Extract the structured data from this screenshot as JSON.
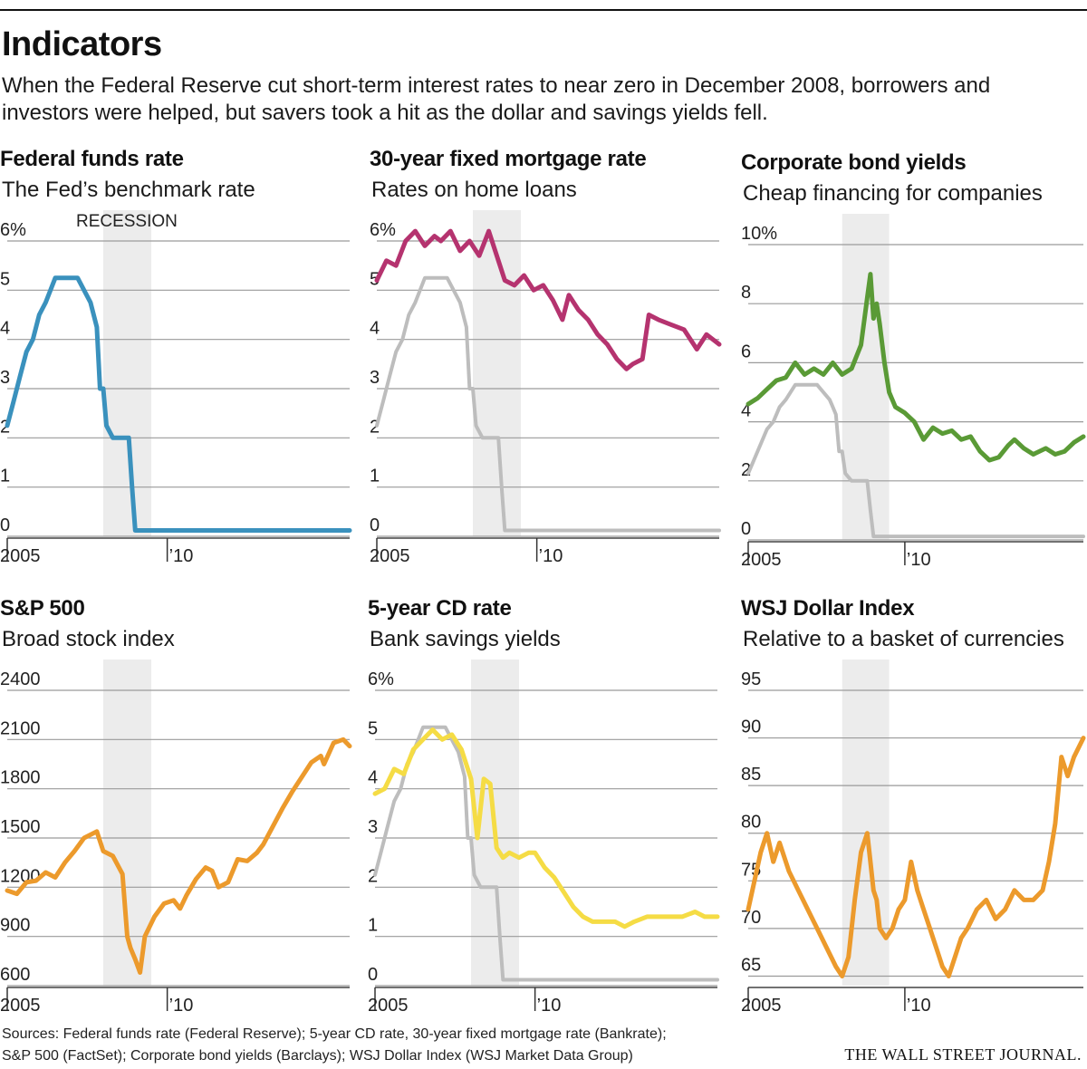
{
  "headline": "Indicators",
  "dek": "When the Federal Reserve cut short-term interest rates to near zero in December 2008, borrowers and investors were helped, but savers took a hit as the dollar and savings yields fell.",
  "sources": [
    "Sources: Federal funds rate (Federal Reserve); 5-year CD rate, 30-year fixed mortgage rate (Bankrate);",
    "S&P 500 (FactSet); Corporate bond yields (Barclays); WSJ Dollar Index (WSJ Market Data Group)"
  ],
  "masthead": "THE WALL STREET JOURNAL.",
  "colors": {
    "fed": "#3a91bd",
    "mortgage": "#b5336f",
    "corporate": "#5a9a36",
    "sp500": "#ec9a2c",
    "cd": "#f5dc45",
    "dollar": "#ec9a2c",
    "reference": "#bdbdbd",
    "recession": "#ececec"
  },
  "chart_data": [
    {
      "type": "line",
      "title": "Federal funds rate",
      "subtitle": "The Fed’s benchmark rate",
      "ylim": [
        0,
        6
      ],
      "yticks": [
        "6%",
        "5",
        "4",
        "3",
        "2",
        "1",
        "0"
      ],
      "ytick_values": [
        6,
        5,
        4,
        3,
        2,
        1,
        0
      ],
      "xlim": [
        2005,
        2015.7
      ],
      "xticks": [
        "2005",
        "’10"
      ],
      "xtick_values": [
        2005,
        2010
      ],
      "recession": [
        2008.0,
        2009.5
      ],
      "recession_label": "RECESSION",
      "series": [
        {
          "color": "#3a91bd",
          "x": [
            2005.0,
            2005.2,
            2005.4,
            2005.6,
            2005.8,
            2006.0,
            2006.2,
            2006.5,
            2007.2,
            2007.6,
            2007.7,
            2007.8,
            2007.9,
            2008.0,
            2008.1,
            2008.3,
            2008.8,
            2008.9,
            2009.0,
            2015.7
          ],
          "y": [
            2.25,
            2.75,
            3.25,
            3.75,
            4.0,
            4.5,
            4.75,
            5.25,
            5.25,
            4.75,
            4.5,
            4.25,
            3.0,
            3.0,
            2.25,
            2.0,
            2.0,
            1.0,
            0.12,
            0.12
          ]
        }
      ]
    },
    {
      "type": "line",
      "title": "30-year fixed mortgage rate",
      "subtitle": "Rates on home loans",
      "ylim": [
        0,
        6
      ],
      "yticks": [
        "6%",
        "5",
        "4",
        "3",
        "2",
        "1",
        "0"
      ],
      "ytick_values": [
        6,
        5,
        4,
        3,
        2,
        1,
        0
      ],
      "xlim": [
        2005,
        2015.7
      ],
      "xticks": [
        "2005",
        "’10"
      ],
      "xtick_values": [
        2005,
        2010
      ],
      "recession": [
        2008.0,
        2009.5
      ],
      "series": [
        {
          "color": "#bdbdbd",
          "x": [
            2005.0,
            2005.2,
            2005.4,
            2005.6,
            2005.8,
            2006.0,
            2006.2,
            2006.5,
            2007.2,
            2007.6,
            2007.7,
            2007.8,
            2007.9,
            2008.0,
            2008.1,
            2008.3,
            2008.8,
            2008.9,
            2009.0,
            2015.7
          ],
          "y": [
            2.25,
            2.75,
            3.25,
            3.75,
            4.0,
            4.5,
            4.75,
            5.25,
            5.25,
            4.75,
            4.5,
            4.25,
            3.0,
            3.0,
            2.25,
            2.0,
            2.0,
            1.0,
            0.12,
            0.12
          ]
        },
        {
          "color": "#b5336f",
          "x": [
            2005.0,
            2005.3,
            2005.6,
            2005.9,
            2006.2,
            2006.5,
            2006.8,
            2007.0,
            2007.3,
            2007.6,
            2007.9,
            2008.2,
            2008.5,
            2008.8,
            2009.0,
            2009.3,
            2009.6,
            2009.9,
            2010.2,
            2010.5,
            2010.8,
            2011.0,
            2011.3,
            2011.6,
            2011.9,
            2012.2,
            2012.5,
            2012.8,
            2013.0,
            2013.3,
            2013.5,
            2013.8,
            2014.2,
            2014.6,
            2015.0,
            2015.3,
            2015.7
          ],
          "y": [
            5.2,
            5.6,
            5.5,
            6.0,
            6.2,
            5.9,
            6.1,
            6.0,
            6.2,
            5.8,
            6.0,
            5.7,
            6.2,
            5.6,
            5.2,
            5.1,
            5.3,
            5.0,
            5.1,
            4.8,
            4.4,
            4.9,
            4.6,
            4.4,
            4.1,
            3.9,
            3.6,
            3.4,
            3.5,
            3.6,
            4.5,
            4.4,
            4.3,
            4.2,
            3.8,
            4.1,
            3.9
          ]
        }
      ]
    },
    {
      "type": "line",
      "title": "Corporate bond yields",
      "subtitle": "Cheap financing for companies",
      "ylim": [
        0,
        10
      ],
      "yticks": [
        "10%",
        "8",
        "6",
        "4",
        "2",
        "0"
      ],
      "ytick_values": [
        10,
        8,
        6,
        4,
        2,
        0
      ],
      "xlim": [
        2005,
        2015.7
      ],
      "xticks": [
        "2005",
        "’10"
      ],
      "xtick_values": [
        2005,
        2010
      ],
      "recession": [
        2008.0,
        2009.5
      ],
      "series": [
        {
          "color": "#bdbdbd",
          "x": [
            2005.0,
            2005.2,
            2005.4,
            2005.6,
            2005.8,
            2006.0,
            2006.2,
            2006.5,
            2007.2,
            2007.6,
            2007.7,
            2007.8,
            2007.9,
            2008.0,
            2008.1,
            2008.3,
            2008.8,
            2008.9,
            2009.0,
            2015.7
          ],
          "y": [
            2.25,
            2.75,
            3.25,
            3.75,
            4.0,
            4.5,
            4.75,
            5.25,
            5.25,
            4.75,
            4.5,
            4.25,
            3.0,
            3.0,
            2.25,
            2.0,
            2.0,
            1.0,
            0.12,
            0.12
          ]
        },
        {
          "color": "#5a9a36",
          "x": [
            2005.0,
            2005.3,
            2005.6,
            2005.9,
            2006.2,
            2006.5,
            2006.8,
            2007.1,
            2007.4,
            2007.7,
            2008.0,
            2008.3,
            2008.6,
            2008.8,
            2008.9,
            2009.0,
            2009.1,
            2009.2,
            2009.35,
            2009.5,
            2009.7,
            2010.0,
            2010.3,
            2010.6,
            2010.9,
            2011.2,
            2011.5,
            2011.8,
            2012.1,
            2012.4,
            2012.7,
            2013.0,
            2013.3,
            2013.5,
            2013.8,
            2014.1,
            2014.5,
            2014.8,
            2015.1,
            2015.4,
            2015.7
          ],
          "y": [
            4.6,
            4.8,
            5.1,
            5.4,
            5.5,
            6.0,
            5.6,
            5.8,
            5.6,
            6.0,
            5.6,
            5.8,
            6.6,
            8.2,
            9.0,
            7.5,
            8.0,
            7.3,
            6.0,
            5.0,
            4.5,
            4.3,
            4.0,
            3.4,
            3.8,
            3.6,
            3.7,
            3.4,
            3.5,
            3.0,
            2.7,
            2.8,
            3.2,
            3.4,
            3.1,
            2.9,
            3.1,
            2.9,
            3.0,
            3.3,
            3.5
          ]
        }
      ]
    },
    {
      "type": "line",
      "title": "S&P 500",
      "subtitle": "Broad stock index",
      "ylim": [
        600,
        2400
      ],
      "yticks": [
        "2400",
        "2100",
        "1800",
        "1500",
        "1200",
        "900",
        "600"
      ],
      "ytick_values": [
        2400,
        2100,
        1800,
        1500,
        1200,
        900,
        600
      ],
      "xlim": [
        2005,
        2015.7
      ],
      "xticks": [
        "2005",
        "’10"
      ],
      "xtick_values": [
        2005,
        2010
      ],
      "recession": [
        2008.0,
        2009.5
      ],
      "series": [
        {
          "color": "#ec9a2c",
          "x": [
            2005.0,
            2005.3,
            2005.6,
            2005.9,
            2006.2,
            2006.5,
            2006.8,
            2007.1,
            2007.4,
            2007.8,
            2008.0,
            2008.3,
            2008.6,
            2008.75,
            2008.85,
            2009.0,
            2009.15,
            2009.3,
            2009.6,
            2009.9,
            2010.2,
            2010.4,
            2010.6,
            2010.9,
            2011.2,
            2011.4,
            2011.6,
            2011.9,
            2012.2,
            2012.5,
            2012.8,
            2013.0,
            2013.3,
            2013.6,
            2013.9,
            2014.2,
            2014.5,
            2014.8,
            2014.9,
            2015.2,
            2015.5,
            2015.7
          ],
          "y": [
            1180,
            1160,
            1230,
            1240,
            1290,
            1260,
            1350,
            1420,
            1500,
            1540,
            1420,
            1390,
            1280,
            900,
            830,
            760,
            680,
            900,
            1020,
            1100,
            1120,
            1070,
            1150,
            1250,
            1320,
            1300,
            1200,
            1230,
            1370,
            1360,
            1410,
            1460,
            1570,
            1680,
            1780,
            1870,
            1960,
            2000,
            1950,
            2080,
            2100,
            2060
          ]
        }
      ]
    },
    {
      "type": "line",
      "title": "5-year CD rate",
      "subtitle": "Bank savings yields",
      "ylim": [
        0,
        6
      ],
      "yticks": [
        "6%",
        "5",
        "4",
        "3",
        "2",
        "1",
        "0"
      ],
      "ytick_values": [
        6,
        5,
        4,
        3,
        2,
        1,
        0
      ],
      "xlim": [
        2005,
        2015.7
      ],
      "xticks": [
        "2005",
        "’10"
      ],
      "xtick_values": [
        2005,
        2010
      ],
      "recession": [
        2008.0,
        2009.5
      ],
      "series": [
        {
          "color": "#bdbdbd",
          "x": [
            2005.0,
            2005.2,
            2005.4,
            2005.6,
            2005.8,
            2006.0,
            2006.2,
            2006.5,
            2007.2,
            2007.6,
            2007.7,
            2007.8,
            2007.9,
            2008.0,
            2008.1,
            2008.3,
            2008.8,
            2008.9,
            2009.0,
            2015.7
          ],
          "y": [
            2.25,
            2.75,
            3.25,
            3.75,
            4.0,
            4.5,
            4.75,
            5.25,
            5.25,
            4.75,
            4.5,
            4.25,
            3.0,
            3.0,
            2.25,
            2.0,
            2.0,
            1.0,
            0.12,
            0.12
          ]
        },
        {
          "color": "#f5dc45",
          "x": [
            2005.0,
            2005.3,
            2005.6,
            2005.9,
            2006.2,
            2006.5,
            2006.8,
            2007.1,
            2007.4,
            2007.7,
            2008.0,
            2008.2,
            2008.4,
            2008.6,
            2008.8,
            2009.0,
            2009.2,
            2009.5,
            2009.8,
            2010.0,
            2010.3,
            2010.6,
            2010.9,
            2011.2,
            2011.5,
            2011.8,
            2012.1,
            2012.5,
            2012.8,
            2013.1,
            2013.5,
            2013.8,
            2014.2,
            2014.6,
            2015.0,
            2015.3,
            2015.7
          ],
          "y": [
            3.9,
            4.0,
            4.4,
            4.3,
            4.8,
            5.0,
            5.2,
            5.0,
            5.1,
            4.8,
            4.2,
            3.0,
            4.2,
            4.1,
            2.8,
            2.6,
            2.7,
            2.6,
            2.7,
            2.7,
            2.4,
            2.2,
            1.9,
            1.6,
            1.4,
            1.3,
            1.3,
            1.3,
            1.2,
            1.3,
            1.4,
            1.4,
            1.4,
            1.4,
            1.5,
            1.4,
            1.4
          ]
        }
      ]
    },
    {
      "type": "line",
      "title": "WSJ Dollar Index",
      "subtitle": "Relative to a basket of currencies",
      "ylim": [
        64,
        95
      ],
      "yticks": [
        "95",
        "90",
        "85",
        "80",
        "75",
        "70",
        "65"
      ],
      "ytick_values": [
        95,
        90,
        85,
        80,
        75,
        70,
        65
      ],
      "xlim": [
        2005,
        2015.7
      ],
      "xticks": [
        "2005",
        "’10"
      ],
      "xtick_values": [
        2005,
        2010
      ],
      "recession": [
        2008.0,
        2009.5
      ],
      "series": [
        {
          "color": "#ec9a2c",
          "x": [
            2005.0,
            2005.2,
            2005.4,
            2005.6,
            2005.8,
            2006.0,
            2006.3,
            2006.6,
            2006.9,
            2007.2,
            2007.5,
            2007.8,
            2008.0,
            2008.2,
            2008.4,
            2008.6,
            2008.8,
            2008.9,
            2009.0,
            2009.1,
            2009.2,
            2009.4,
            2009.6,
            2009.8,
            2010.0,
            2010.2,
            2010.4,
            2010.6,
            2010.8,
            2011.0,
            2011.2,
            2011.4,
            2011.6,
            2011.8,
            2012.0,
            2012.3,
            2012.6,
            2012.9,
            2013.2,
            2013.5,
            2013.8,
            2014.1,
            2014.4,
            2014.6,
            2014.8,
            2015.0,
            2015.2,
            2015.4,
            2015.7
          ],
          "y": [
            72,
            75,
            78,
            80,
            77,
            79,
            76,
            74,
            72,
            70,
            68,
            66,
            65,
            67,
            73,
            78,
            80,
            77,
            74,
            73,
            70,
            69,
            70,
            72,
            73,
            77,
            74,
            72,
            70,
            68,
            66,
            65,
            67,
            69,
            70,
            72,
            73,
            71,
            72,
            74,
            73,
            73,
            74,
            77,
            81,
            88,
            86,
            88,
            90
          ]
        }
      ]
    }
  ]
}
